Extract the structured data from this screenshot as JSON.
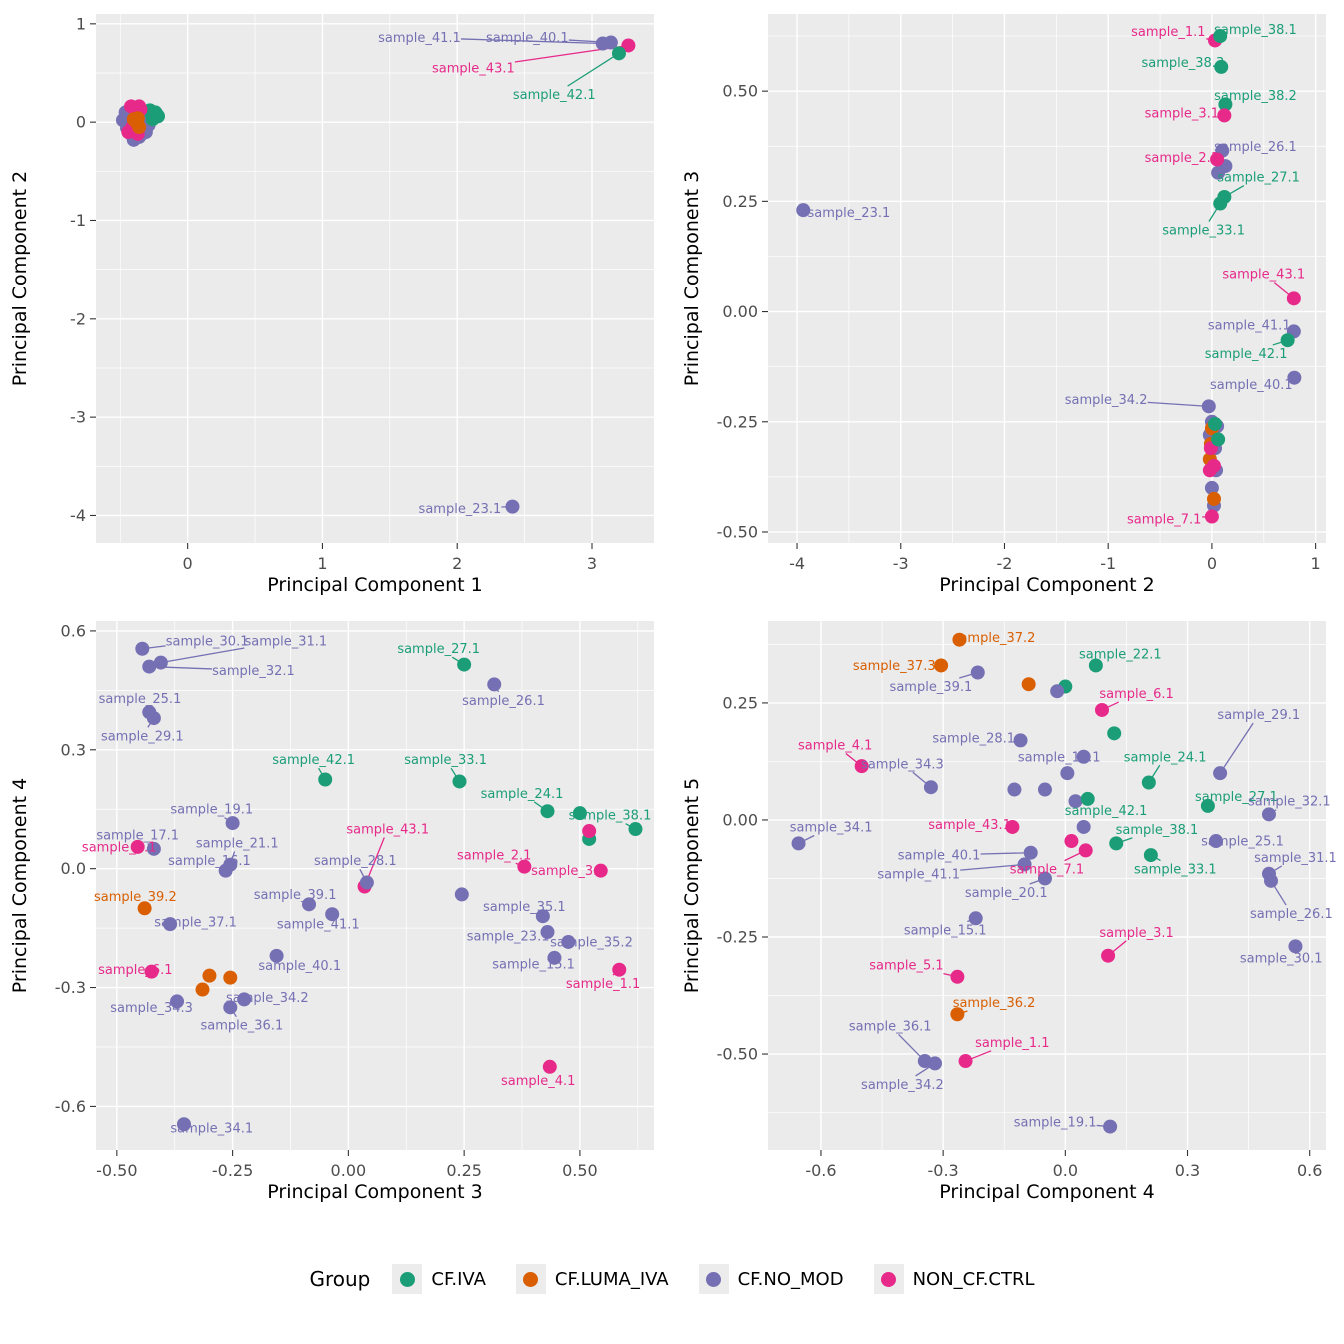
{
  "figure": {
    "panel_bg": "#EBEBEB",
    "grid_color": "#FFFFFF",
    "axis_text_color": "#4D4D4D",
    "axis_title_color": "#000000"
  },
  "legend": {
    "title": "Group",
    "entries": [
      {
        "label": "CF.IVA",
        "color": "#1B9E77"
      },
      {
        "label": "CF.LUMA_IVA",
        "color": "#D95F02"
      },
      {
        "label": "CF.NO_MOD",
        "color": "#7570B3"
      },
      {
        "label": "NON_CF.CTRL",
        "color": "#E7298A"
      }
    ]
  },
  "chart_data": [
    {
      "type": "scatter",
      "xlabel": "Principal Component 1",
      "ylabel": "Principal Component 2",
      "xlim": [
        -0.68,
        3.46
      ],
      "ylim": [
        -4.28,
        1.1
      ],
      "xticks": [
        0,
        1,
        2,
        3
      ],
      "xtick_labels": [
        "0",
        "1",
        "2",
        "3"
      ],
      "yticks": [
        1,
        0,
        -1,
        -2,
        -3,
        -4
      ],
      "ytick_labels": [
        "1",
        "0",
        "-1",
        "-2",
        "-3",
        "-4"
      ],
      "points": [
        [
          -0.48,
          0.02,
          2
        ],
        [
          -0.45,
          -0.06,
          2
        ],
        [
          -0.44,
          0.07,
          2
        ],
        [
          -0.42,
          -0.12,
          2
        ],
        [
          -0.41,
          0.12,
          2
        ],
        [
          -0.4,
          -0.02,
          2
        ],
        [
          -0.39,
          0.05,
          2
        ],
        [
          -0.38,
          -0.08,
          2
        ],
        [
          -0.37,
          0.1,
          2
        ],
        [
          -0.36,
          -0.15,
          2
        ],
        [
          -0.35,
          0.0,
          2
        ],
        [
          -0.34,
          0.08,
          2
        ],
        [
          -0.33,
          -0.05,
          2
        ],
        [
          -0.32,
          0.03,
          2
        ],
        [
          -0.31,
          -0.1,
          2
        ],
        [
          -0.3,
          0.06,
          2
        ],
        [
          -0.43,
          0.0,
          2
        ],
        [
          -0.46,
          0.1,
          2
        ],
        [
          -0.29,
          -0.03,
          2
        ],
        [
          -0.4,
          -0.18,
          2
        ],
        [
          -0.34,
          -0.12,
          2
        ],
        [
          -0.27,
          0.09,
          0
        ],
        [
          -0.25,
          0.06,
          0
        ],
        [
          -0.23,
          0.08,
          0
        ],
        [
          -0.26,
          0.03,
          0
        ],
        [
          -0.24,
          0.1,
          0
        ],
        [
          -0.22,
          0.06,
          0
        ],
        [
          -0.28,
          0.12,
          0
        ],
        [
          -0.39,
          0.14,
          3
        ],
        [
          -0.36,
          0.16,
          3
        ],
        [
          -0.42,
          0.16,
          3
        ],
        [
          -0.37,
          -0.12,
          3
        ],
        [
          -0.44,
          -0.1,
          3
        ],
        [
          -0.35,
          0.13,
          3
        ],
        [
          -0.41,
          -0.05,
          3
        ],
        [
          -0.38,
          0.0,
          1
        ],
        [
          -0.36,
          -0.05,
          1
        ],
        [
          -0.4,
          0.03,
          1
        ],
        [
          -0.37,
          0.04,
          1
        ]
      ],
      "labels": [
        [
          "sample_41.1",
          1.72,
          0.86,
          3.08,
          0.8,
          2
        ],
        [
          "sample_40.1",
          2.52,
          0.86,
          3.14,
          0.81,
          2
        ],
        [
          "sample_43.1",
          2.12,
          0.55,
          3.27,
          0.78,
          3
        ],
        [
          "sample_42.1",
          2.72,
          0.28,
          3.2,
          0.7,
          0
        ],
        [
          "sample_23.1",
          2.02,
          -3.93,
          2.41,
          -3.91,
          2
        ]
      ]
    },
    {
      "type": "scatter",
      "xlabel": "Principal Component 2",
      "ylabel": "Principal Component 3",
      "xlim": [
        -4.28,
        1.1
      ],
      "ylim": [
        -0.525,
        0.675
      ],
      "xticks": [
        -4,
        -3,
        -2,
        -1,
        0,
        1
      ],
      "xtick_labels": [
        "-4",
        "-3",
        "-2",
        "-1",
        "0",
        "1"
      ],
      "yticks": [
        -0.5,
        -0.25,
        0.0,
        0.25,
        0.5
      ],
      "ytick_labels": [
        "-0.50",
        "-0.25",
        "0.00",
        "0.25",
        "0.50"
      ],
      "points": [
        [
          0.06,
          0.315,
          2
        ],
        [
          0.13,
          0.33,
          2
        ],
        [
          0.0,
          -0.25,
          2
        ],
        [
          0.05,
          -0.26,
          2
        ],
        [
          0.04,
          -0.36,
          2
        ],
        [
          0.0,
          -0.4,
          2
        ],
        [
          0.02,
          -0.44,
          2
        ],
        [
          -0.02,
          -0.28,
          2
        ],
        [
          0.03,
          -0.31,
          2
        ],
        [
          0.0,
          -0.265,
          1
        ],
        [
          -0.01,
          -0.3,
          1
        ],
        [
          -0.02,
          -0.335,
          1
        ],
        [
          0.02,
          -0.425,
          1
        ],
        [
          -0.02,
          -0.36,
          3
        ],
        [
          -0.01,
          -0.31,
          3
        ],
        [
          0.02,
          -0.35,
          3
        ],
        [
          0.03,
          -0.255,
          0
        ],
        [
          0.06,
          -0.29,
          0
        ]
      ],
      "labels": [
        [
          "sample_23.1",
          -3.5,
          0.225,
          -3.94,
          0.23,
          2
        ],
        [
          "sample_1.1",
          -0.42,
          0.635,
          0.03,
          0.615,
          3
        ],
        [
          "sample_38.1",
          0.42,
          0.64,
          0.08,
          0.625,
          0
        ],
        [
          "sample_38.3",
          -0.28,
          0.565,
          0.09,
          0.555,
          0
        ],
        [
          "sample_38.2",
          0.42,
          0.49,
          0.13,
          0.47,
          0
        ],
        [
          "sample_3.1",
          -0.29,
          0.45,
          0.12,
          0.445,
          3
        ],
        [
          "sample_26.1",
          0.42,
          0.375,
          0.1,
          0.365,
          2
        ],
        [
          "sample_2.1",
          -0.29,
          0.35,
          0.05,
          0.345,
          3
        ],
        [
          "sample_27.1",
          0.45,
          0.305,
          0.12,
          0.26,
          0
        ],
        [
          "sample_33.1",
          -0.08,
          0.185,
          0.08,
          0.245,
          0
        ],
        [
          "sample_43.1",
          0.5,
          0.085,
          0.79,
          0.03,
          3
        ],
        [
          "sample_41.1",
          0.36,
          -0.03,
          0.79,
          -0.045,
          2
        ],
        [
          "sample_42.1",
          0.33,
          -0.095,
          0.73,
          -0.065,
          0
        ],
        [
          "sample_40.1",
          0.38,
          -0.165,
          0.795,
          -0.15,
          2
        ],
        [
          "sample_34.2",
          -1.02,
          -0.2,
          -0.03,
          -0.215,
          2
        ],
        [
          "sample_7.1",
          -0.46,
          -0.47,
          0.0,
          -0.465,
          3
        ]
      ]
    },
    {
      "type": "scatter",
      "xlabel": "Principal Component 3",
      "ylabel": "Principal Component 4",
      "xlim": [
        -0.545,
        0.66
      ],
      "ylim": [
        -0.71,
        0.625
      ],
      "xticks": [
        -0.5,
        -0.25,
        0.0,
        0.25,
        0.5
      ],
      "xtick_labels": [
        "-0.50",
        "-0.25",
        "0.00",
        "0.25",
        "0.50"
      ],
      "yticks": [
        -0.6,
        -0.3,
        0.0,
        0.3,
        0.6
      ],
      "ytick_labels": [
        "-0.6",
        "-0.3",
        "0.0",
        "0.3",
        "0.6"
      ],
      "points": [
        [
          -0.3,
          -0.27,
          1
        ],
        [
          -0.255,
          -0.275,
          1
        ],
        [
          -0.315,
          -0.305,
          1
        ],
        [
          0.52,
          0.075,
          0
        ],
        [
          0.5,
          0.14,
          0
        ],
        [
          0.52,
          0.095,
          3
        ],
        [
          0.245,
          -0.065,
          2
        ]
      ],
      "labels": [
        [
          "sample_30.1",
          -0.305,
          0.575,
          -0.445,
          0.555,
          2
        ],
        [
          "sample_31.1",
          -0.135,
          0.575,
          -0.405,
          0.52,
          2
        ],
        [
          "sample_32.1",
          -0.205,
          0.5,
          -0.43,
          0.51,
          2
        ],
        [
          "sample_25.1",
          -0.45,
          0.43,
          -0.43,
          0.395,
          2
        ],
        [
          "sample_29.1",
          -0.445,
          0.335,
          -0.42,
          0.38,
          2
        ],
        [
          "sample_27.1",
          0.195,
          0.555,
          0.25,
          0.515,
          0
        ],
        [
          "sample_26.1",
          0.335,
          0.425,
          0.315,
          0.465,
          2
        ],
        [
          "sample_42.1",
          -0.075,
          0.275,
          -0.05,
          0.225,
          0
        ],
        [
          "sample_33.1",
          0.21,
          0.275,
          0.24,
          0.22,
          0
        ],
        [
          "sample_24.1",
          0.375,
          0.19,
          0.43,
          0.145,
          0
        ],
        [
          "sample_19.1",
          -0.295,
          0.15,
          -0.25,
          0.115,
          2
        ],
        [
          "sample_17.1",
          -0.455,
          0.085,
          -0.42,
          0.05,
          2
        ],
        [
          "sample_21.1",
          -0.24,
          0.065,
          -0.255,
          0.01,
          2
        ],
        [
          "sample_43.1",
          0.085,
          0.1,
          0.035,
          -0.045,
          3
        ],
        [
          "sample_7.1",
          -0.495,
          0.055,
          -0.455,
          0.055,
          3
        ],
        [
          "sample_16.1",
          -0.3,
          0.02,
          -0.265,
          -0.005,
          2
        ],
        [
          "sample_28.1",
          0.015,
          0.02,
          0.04,
          -0.035,
          2
        ],
        [
          "sample_2.1",
          0.315,
          0.035,
          0.38,
          0.005,
          3
        ],
        [
          "sample_38.1",
          0.565,
          0.135,
          0.62,
          0.1,
          0
        ],
        [
          "sample_3.1",
          0.475,
          -0.005,
          0.545,
          -0.005,
          3
        ],
        [
          "sample_39.2",
          -0.46,
          -0.07,
          -0.44,
          -0.1,
          1
        ],
        [
          "sample_39.1",
          -0.115,
          -0.065,
          -0.085,
          -0.09,
          2
        ],
        [
          "sample_37.1",
          -0.33,
          -0.135,
          -0.385,
          -0.14,
          2
        ],
        [
          "sample_41.1",
          -0.065,
          -0.14,
          -0.035,
          -0.115,
          2
        ],
        [
          "sample_35.1",
          0.38,
          -0.095,
          0.42,
          -0.12,
          2
        ],
        [
          "sample_23.1",
          0.345,
          -0.17,
          0.43,
          -0.16,
          2
        ],
        [
          "sample_35.2",
          0.525,
          -0.185,
          0.475,
          -0.185,
          2
        ],
        [
          "sample_15.1",
          0.4,
          -0.24,
          0.445,
          -0.225,
          2
        ],
        [
          "sample_40.1",
          -0.105,
          -0.245,
          -0.155,
          -0.22,
          2
        ],
        [
          "sample_6.1",
          -0.46,
          -0.255,
          -0.425,
          -0.26,
          3
        ],
        [
          "sample_34.3",
          -0.425,
          -0.35,
          -0.37,
          -0.335,
          2
        ],
        [
          "sample_34.2",
          -0.175,
          -0.325,
          -0.225,
          -0.33,
          2
        ],
        [
          "sample_36.1",
          -0.23,
          -0.395,
          -0.255,
          -0.35,
          2
        ],
        [
          "sample_1.1",
          0.55,
          -0.29,
          0.585,
          -0.255,
          3
        ],
        [
          "sample_4.1",
          0.41,
          -0.535,
          0.435,
          -0.5,
          3
        ],
        [
          "sample_34.1",
          -0.295,
          -0.655,
          -0.355,
          -0.645,
          2
        ]
      ]
    },
    {
      "type": "scatter",
      "xlabel": "Principal Component 4",
      "ylabel": "Principal Component 5",
      "xlim": [
        -0.73,
        0.64
      ],
      "ylim": [
        -0.705,
        0.425
      ],
      "xticks": [
        -0.6,
        -0.3,
        0.0,
        0.3,
        0.6
      ],
      "xtick_labels": [
        "-0.6",
        "-0.3",
        "0.0",
        "0.3",
        "0.6"
      ],
      "yticks": [
        0.25,
        0.0,
        -0.25,
        -0.5
      ],
      "ytick_labels": [
        "0.25",
        "0.00",
        "-0.25",
        "-0.50"
      ],
      "points": [
        [
          -0.09,
          0.29,
          1
        ],
        [
          0.0,
          0.285,
          0
        ],
        [
          0.12,
          0.185,
          0
        ],
        [
          0.015,
          -0.045,
          3
        ],
        [
          -0.02,
          0.275,
          2
        ],
        [
          -0.125,
          0.065,
          2
        ],
        [
          -0.05,
          0.065,
          2
        ],
        [
          0.005,
          0.1,
          2
        ],
        [
          0.045,
          -0.015,
          2
        ],
        [
          0.025,
          0.04,
          2
        ]
      ],
      "labels": [
        [
          "sample_37.2",
          -0.175,
          0.39,
          -0.26,
          0.385,
          1
        ],
        [
          "sample_22.1",
          0.135,
          0.355,
          0.075,
          0.33,
          0
        ],
        [
          "sample_37.3",
          -0.42,
          0.33,
          -0.305,
          0.33,
          1
        ],
        [
          "sample_39.1",
          -0.33,
          0.285,
          -0.215,
          0.315,
          2
        ],
        [
          "sample_6.1",
          0.175,
          0.27,
          0.09,
          0.235,
          3
        ],
        [
          "sample_28.1",
          -0.225,
          0.175,
          -0.11,
          0.17,
          2
        ],
        [
          "sample_29.1",
          0.475,
          0.225,
          0.38,
          0.1,
          2
        ],
        [
          "sample_4.1",
          -0.565,
          0.16,
          -0.5,
          0.115,
          3
        ],
        [
          "sample_34.3",
          -0.4,
          0.12,
          -0.33,
          0.07,
          2
        ],
        [
          "sample_16.1",
          -0.015,
          0.135,
          0.045,
          0.135,
          2
        ],
        [
          "sample_24.1",
          0.245,
          0.135,
          0.205,
          0.08,
          0
        ],
        [
          "sample_27.1",
          0.42,
          0.05,
          0.35,
          0.03,
          0
        ],
        [
          "sample_32.1",
          0.55,
          0.04,
          0.5,
          0.012,
          2
        ],
        [
          "sample_34.1",
          -0.575,
          -0.015,
          -0.655,
          -0.05,
          2
        ],
        [
          "sample_43.1",
          -0.235,
          -0.01,
          -0.13,
          -0.015,
          3
        ],
        [
          "sample_42.1",
          0.1,
          0.02,
          0.055,
          0.045,
          0
        ],
        [
          "sample_38.1",
          0.225,
          -0.02,
          0.125,
          -0.05,
          0
        ],
        [
          "sample_25.1",
          0.435,
          -0.045,
          0.37,
          -0.045,
          2
        ],
        [
          "sample_31.1",
          0.565,
          -0.08,
          0.5,
          -0.115,
          2
        ],
        [
          "sample_40.1",
          -0.31,
          -0.075,
          -0.085,
          -0.07,
          2
        ],
        [
          "sample_7.1",
          -0.045,
          -0.105,
          0.05,
          -0.065,
          3
        ],
        [
          "sample_33.1",
          0.27,
          -0.105,
          0.21,
          -0.075,
          0
        ],
        [
          "sample_41.1",
          -0.36,
          -0.115,
          -0.1,
          -0.095,
          2
        ],
        [
          "sample_20.1",
          -0.145,
          -0.155,
          -0.05,
          -0.125,
          2
        ],
        [
          "sample_26.1",
          0.555,
          -0.2,
          0.505,
          -0.13,
          2
        ],
        [
          "sample_15.1",
          -0.295,
          -0.235,
          -0.22,
          -0.21,
          2
        ],
        [
          "sample_3.1",
          0.175,
          -0.24,
          0.105,
          -0.29,
          3
        ],
        [
          "sample_5.1",
          -0.39,
          -0.31,
          -0.265,
          -0.335,
          3
        ],
        [
          "sample_30.1",
          0.53,
          -0.295,
          0.565,
          -0.27,
          2
        ],
        [
          "sample_36.2",
          -0.175,
          -0.39,
          -0.265,
          -0.415,
          1
        ],
        [
          "sample_36.1",
          -0.43,
          -0.44,
          -0.345,
          -0.515,
          2
        ],
        [
          "sample_1.1",
          -0.13,
          -0.475,
          -0.245,
          -0.515,
          3
        ],
        [
          "sample_34.2",
          -0.4,
          -0.565,
          -0.32,
          -0.52,
          2
        ],
        [
          "sample_19.1",
          -0.025,
          -0.645,
          0.11,
          -0.655,
          2
        ]
      ]
    }
  ]
}
